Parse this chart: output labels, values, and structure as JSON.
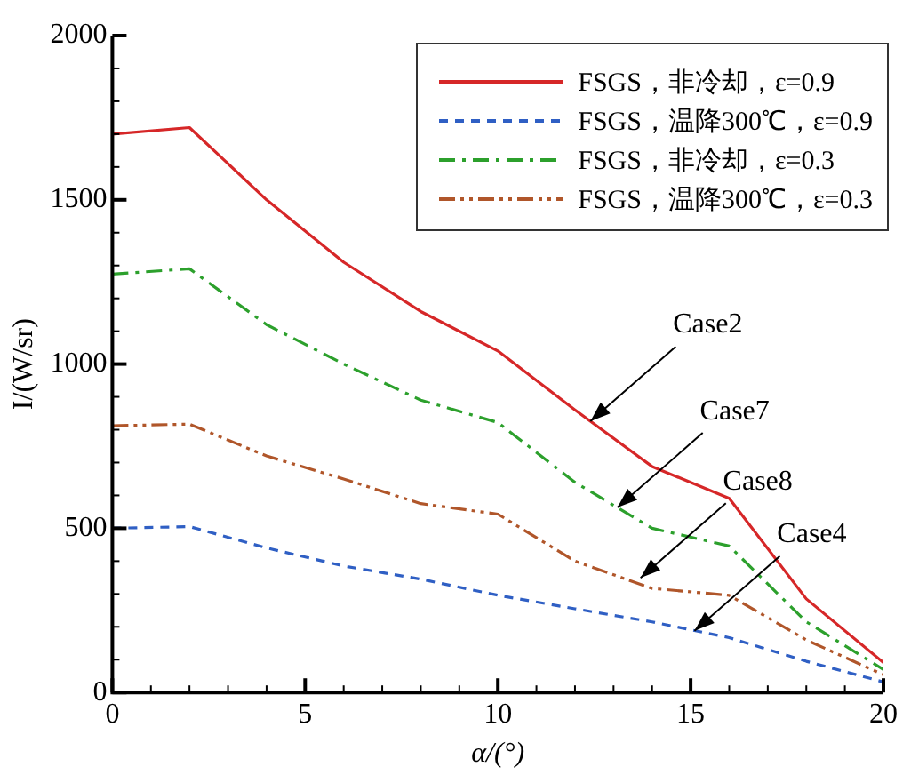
{
  "chart_data": {
    "type": "line",
    "xlabel": "α/(°)",
    "ylabel": "I/(W/sr)",
    "x": [
      0,
      2,
      4,
      6,
      8,
      10,
      12,
      14,
      16,
      18,
      20
    ],
    "xlim": [
      0,
      20
    ],
    "xticks": [
      0,
      5,
      10,
      15,
      20
    ],
    "ylim": [
      0,
      2000
    ],
    "yticks": [
      0,
      500,
      1000,
      1500,
      2000
    ],
    "grid": false,
    "legend": "top right",
    "marker": "none",
    "series": [
      {
        "name": "FSGS，非冷却，ε=0.9",
        "color": "#d62728",
        "line_style": "solid",
        "values": [
          1700,
          1720,
          1500,
          1310,
          1160,
          1040,
          860,
          688,
          591,
          285,
          91
        ]
      },
      {
        "name": "FSGS，温降300℃，ε=0.9",
        "color": "#2f5fc4",
        "line_style": "dashed",
        "values": [
          500,
          505,
          440,
          385,
          345,
          296,
          255,
          215,
          167,
          95,
          32
        ]
      },
      {
        "name": "FSGS，非冷却，ε=0.3",
        "color": "#2ca02c",
        "line_style": "dashdot",
        "values": [
          1274,
          1290,
          1120,
          1000,
          890,
          822,
          640,
          500,
          446,
          215,
          70
        ]
      },
      {
        "name": "FSGS，温降300℃，ε=0.3",
        "color": "#b0562a",
        "line_style": "dashdotdot",
        "values": [
          812,
          817,
          720,
          650,
          575,
          543,
          400,
          317,
          296,
          160,
          54
        ]
      }
    ],
    "annotations": [
      {
        "text": "Case2",
        "x": 12.4,
        "y": 826
      },
      {
        "text": "Case7",
        "x": 13.1,
        "y": 563
      },
      {
        "text": "Case8",
        "x": 13.7,
        "y": 349
      },
      {
        "text": "Case4",
        "x": 15.1,
        "y": 188
      }
    ]
  }
}
